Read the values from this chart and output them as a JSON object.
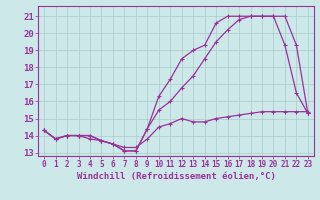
{
  "xlabel": "Windchill (Refroidissement éolien,°C)",
  "background_color": "#cce8e8",
  "grid_color": "#aacccc",
  "line_color": "#993399",
  "spine_color": "#993399",
  "xlim": [
    -0.5,
    23.5
  ],
  "ylim": [
    12.8,
    21.6
  ],
  "xticks": [
    0,
    1,
    2,
    3,
    4,
    5,
    6,
    7,
    8,
    9,
    10,
    11,
    12,
    13,
    14,
    15,
    16,
    17,
    18,
    19,
    20,
    21,
    22,
    23
  ],
  "yticks": [
    13,
    14,
    15,
    16,
    17,
    18,
    19,
    20,
    21
  ],
  "curve1_x": [
    0,
    1,
    2,
    3,
    4,
    5,
    6,
    7,
    8,
    9,
    10,
    11,
    12,
    13,
    14,
    15,
    16,
    17,
    18,
    19,
    20,
    21,
    22,
    23
  ],
  "curve1_y": [
    14.3,
    13.8,
    14.0,
    14.0,
    14.0,
    13.7,
    13.5,
    13.1,
    13.1,
    14.4,
    16.3,
    17.3,
    18.5,
    19.0,
    19.3,
    20.6,
    21.0,
    21.0,
    21.0,
    21.0,
    21.0,
    19.3,
    16.5,
    15.3
  ],
  "curve2_x": [
    0,
    1,
    2,
    3,
    4,
    5,
    6,
    7,
    8,
    9,
    10,
    11,
    12,
    13,
    14,
    15,
    16,
    17,
    18,
    19,
    20,
    21,
    22,
    23
  ],
  "curve2_y": [
    14.3,
    13.8,
    14.0,
    14.0,
    14.0,
    13.7,
    13.5,
    13.1,
    13.1,
    14.4,
    15.5,
    16.0,
    16.8,
    17.5,
    18.5,
    19.5,
    20.2,
    20.8,
    21.0,
    21.0,
    21.0,
    21.0,
    19.3,
    15.3
  ],
  "curve3_x": [
    0,
    1,
    2,
    3,
    4,
    5,
    6,
    7,
    8,
    9,
    10,
    11,
    12,
    13,
    14,
    15,
    16,
    17,
    18,
    19,
    20,
    21,
    22,
    23
  ],
  "curve3_y": [
    14.3,
    13.8,
    14.0,
    14.0,
    13.8,
    13.7,
    13.5,
    13.3,
    13.3,
    13.8,
    14.5,
    14.7,
    15.0,
    14.8,
    14.8,
    15.0,
    15.1,
    15.2,
    15.3,
    15.4,
    15.4,
    15.4,
    15.4,
    15.4
  ],
  "marker": "+",
  "markersize": 3.5,
  "linewidth": 0.9,
  "xlabel_fontsize": 6.5,
  "tick_fontsize": 6.5,
  "tick_fontsize_x": 5.5
}
